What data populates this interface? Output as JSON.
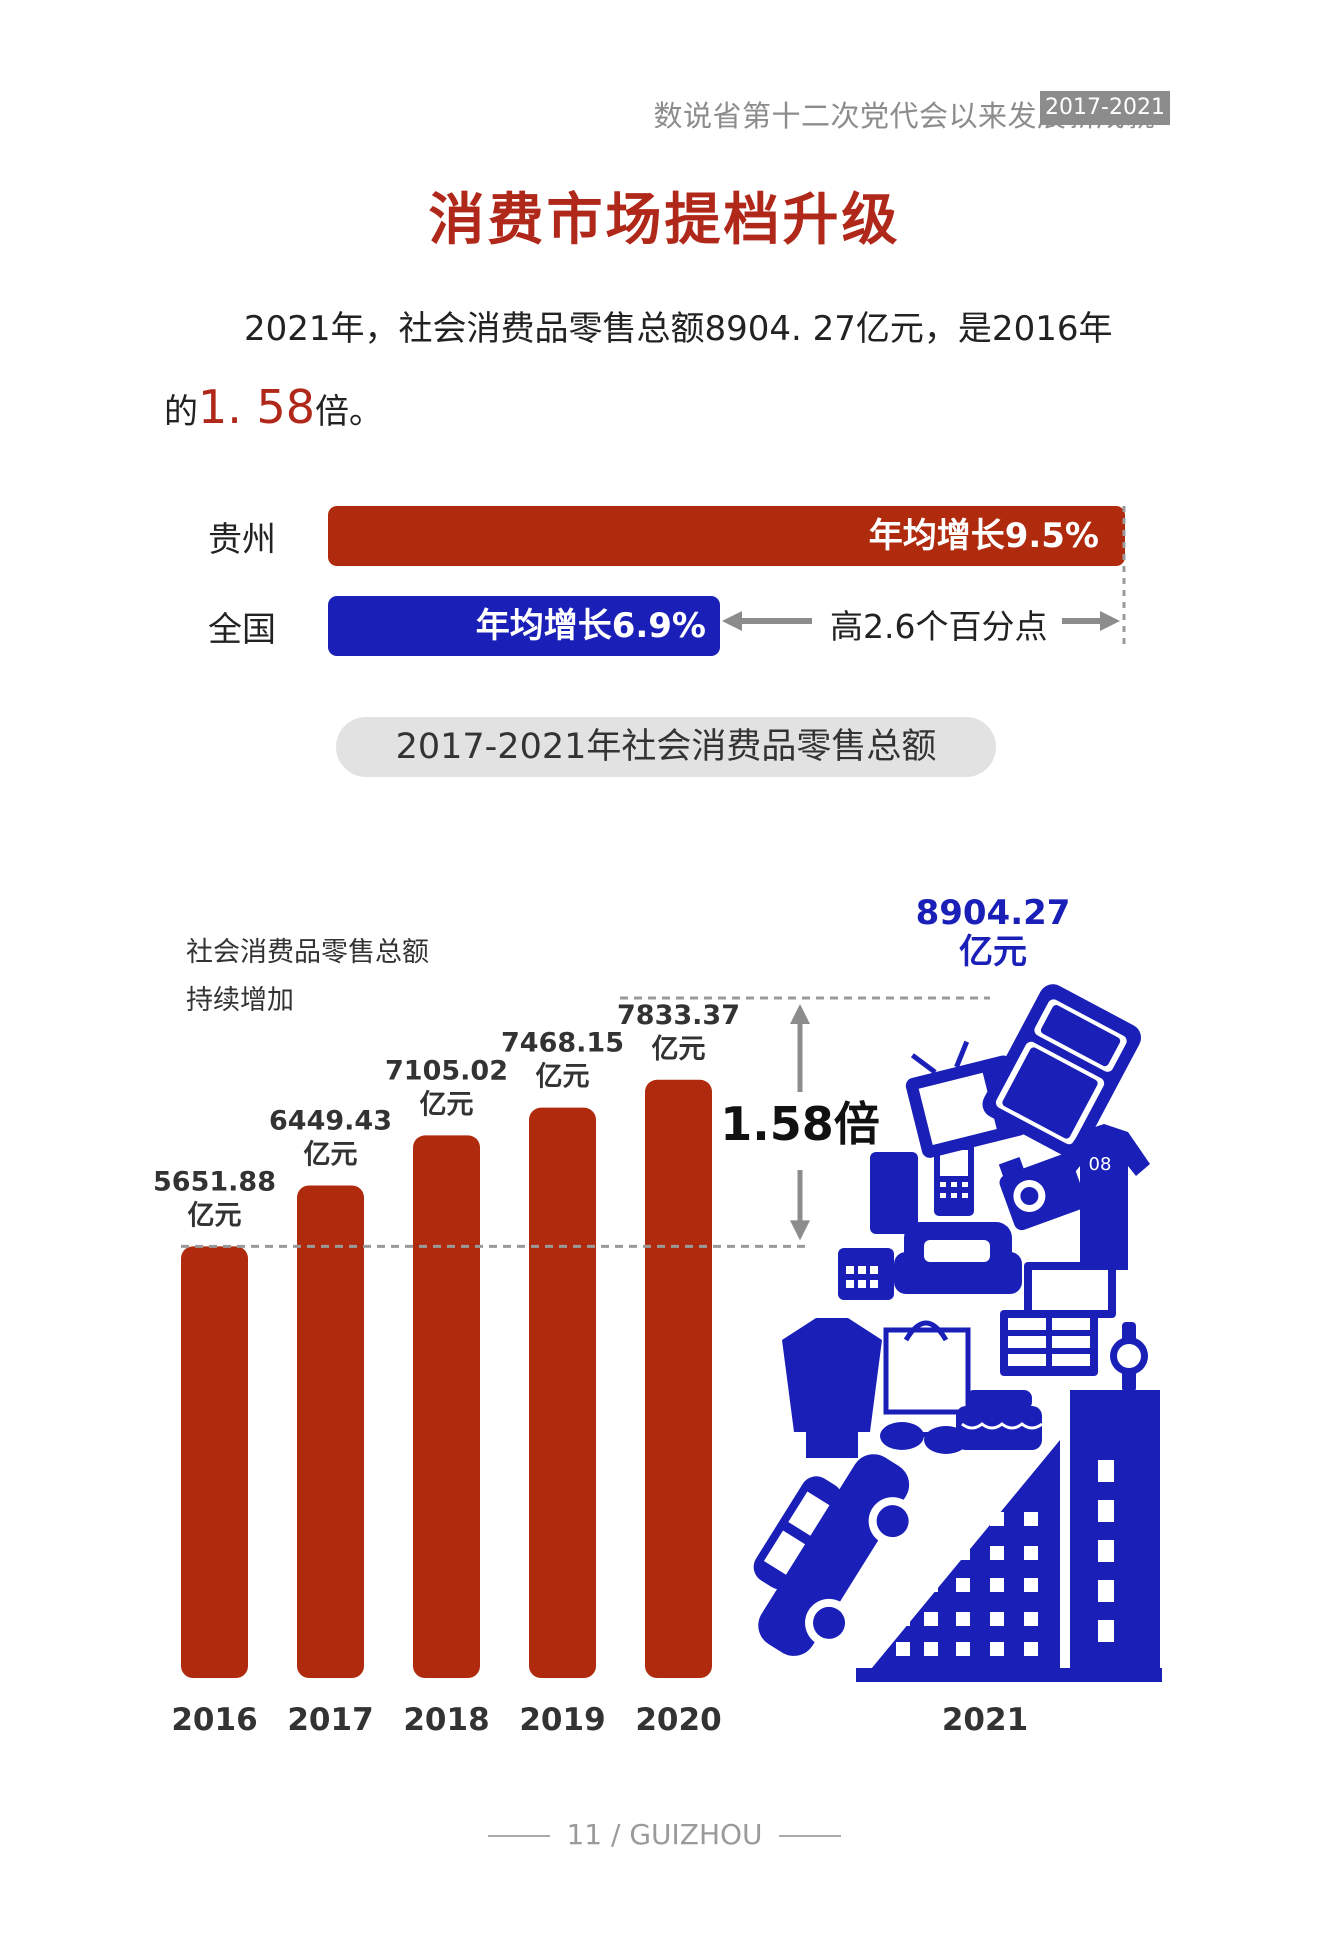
{
  "header": {
    "series": "数说省第十二次党代会以来发展新成就",
    "badge": "2017-2021"
  },
  "page_title": "消费市场提档升级",
  "intro": {
    "part1": "2021年，社会消费品零售总额8904. 27亿元，是2016年",
    "part2": "的",
    "highlight": "1. 58",
    "part3": "倍。"
  },
  "growth_compare": {
    "guizhou": {
      "label": "贵州",
      "text": "年均增长9.5%",
      "rate": 9.5
    },
    "national": {
      "label": "全国",
      "text": "年均增长6.9%",
      "rate": 6.9
    },
    "difference": "高2.6个百分点"
  },
  "section_title": "2017-2021年社会消费品零售总额",
  "chart_note": {
    "line1": "社会消费品零售总额",
    "line2": "持续增加"
  },
  "chart_data": {
    "type": "bar",
    "categories": [
      "2016",
      "2017",
      "2018",
      "2019",
      "2020"
    ],
    "values": [
      5651.88,
      6449.43,
      7105.02,
      7468.15,
      7833.37
    ],
    "value_labels": [
      "5651.88",
      "6449.43",
      "7105.02",
      "7468.15",
      "7833.37"
    ],
    "unit_label": "亿元",
    "ratio_label": "1.58倍",
    "highlight": {
      "category": "2021",
      "value": 8904.27,
      "label": "8904.27",
      "unit": "亿元"
    },
    "colors": {
      "bar": "#b02a0e",
      "highlight": "#1a1fb8",
      "guide": "#9a9a9a"
    }
  },
  "colors": {
    "accent_red": "#b0281a",
    "bar_red": "#b02a0e",
    "blue": "#1a1fb8",
    "grey": "#8c8c8c"
  },
  "icons": [
    "building-icon",
    "car-icon",
    "clothing-icon",
    "shopping-bag-icon",
    "sofa-icon",
    "tv-icon",
    "refrigerator-icon",
    "phone-icon",
    "jersey-icon",
    "camera-icon",
    "cabinet-icon",
    "watch-icon",
    "calendar-icon",
    "sunglasses-icon",
    "cake-icon"
  ],
  "footer": {
    "text": "11 / GUIZHOU"
  }
}
